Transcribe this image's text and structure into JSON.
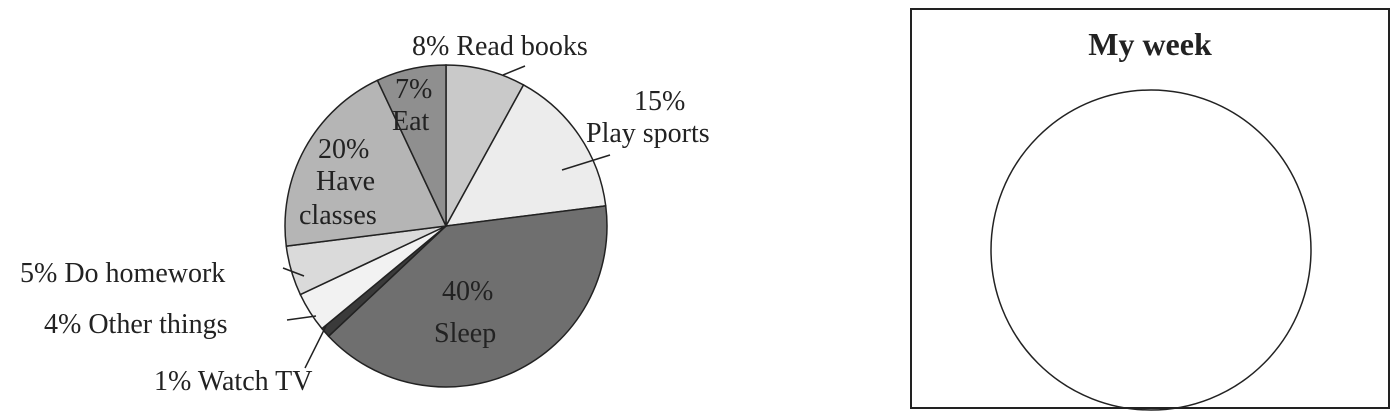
{
  "chart_data": {
    "type": "pie",
    "slices": [
      {
        "label": "Read books",
        "value": 8,
        "display": "8% Read books",
        "color": "#c9c9c9"
      },
      {
        "label": "Play sports",
        "value": 15,
        "display_pct": "15%",
        "display_label": "Play sports",
        "color": "#ececec"
      },
      {
        "label": "Sleep",
        "value": 40,
        "display_pct": "40%",
        "display_label": "Sleep",
        "color": "#6f6f6f"
      },
      {
        "label": "Watch TV",
        "value": 1,
        "display": "1% Watch TV",
        "color": "#3a3a3a"
      },
      {
        "label": "Other things",
        "value": 4,
        "display": "4% Other things",
        "color": "#f2f2f2"
      },
      {
        "label": "Do homework",
        "value": 5,
        "display": "5% Do homework",
        "color": "#dadada"
      },
      {
        "label": "Have classes",
        "value": 20,
        "display_pct": "20%",
        "display_label1": "Have",
        "display_label2": "classes",
        "color": "#b5b5b5"
      },
      {
        "label": "Eat",
        "value": 7,
        "display_pct": "7%",
        "display_label": "Eat",
        "color": "#8f8f8f"
      }
    ],
    "start": "top",
    "direction": "clockwise"
  },
  "template": {
    "title": "My week"
  }
}
